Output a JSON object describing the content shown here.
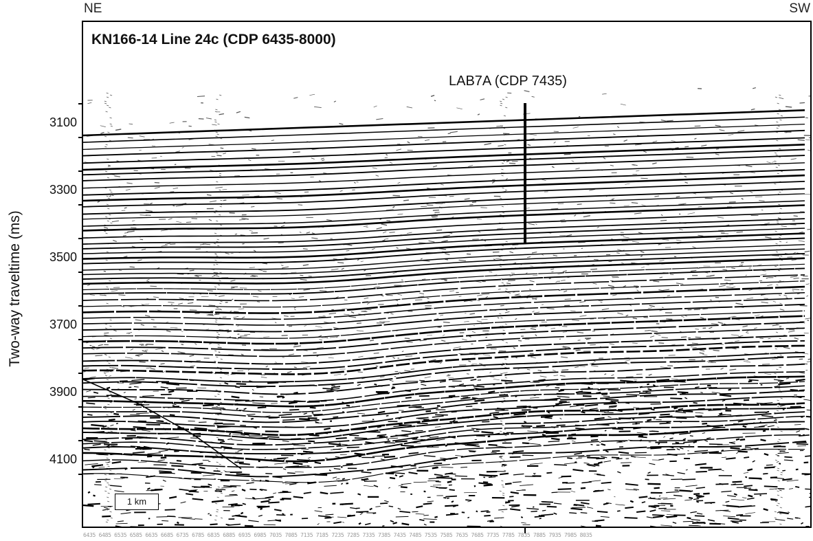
{
  "header": {
    "left_direction": "NE",
    "right_direction": "SW"
  },
  "profile": {
    "title": "KN166-14 Line 24c (CDP 6435-8000)",
    "well_label": "LAB7A (CDP 7435)",
    "scale_bar": "1 km"
  },
  "y_axis": {
    "title": "Two-way traveltime (ms)",
    "ticks": [
      "3100",
      "3300",
      "3500",
      "3700",
      "3900",
      "4100"
    ]
  },
  "cdp_strip": "6435 6485 6535 6585 6635 6685 6735 6785 6835 6885 6935 6985 7035 7085 7135 7185 7235 7285 7335 7385 7435 7485 7535 7585 7635 7685 7735 7785 7835 7885 7935 7985 8035",
  "colors": {
    "reflector": "#000000",
    "background": "#ffffff",
    "noise": "#555555"
  }
}
